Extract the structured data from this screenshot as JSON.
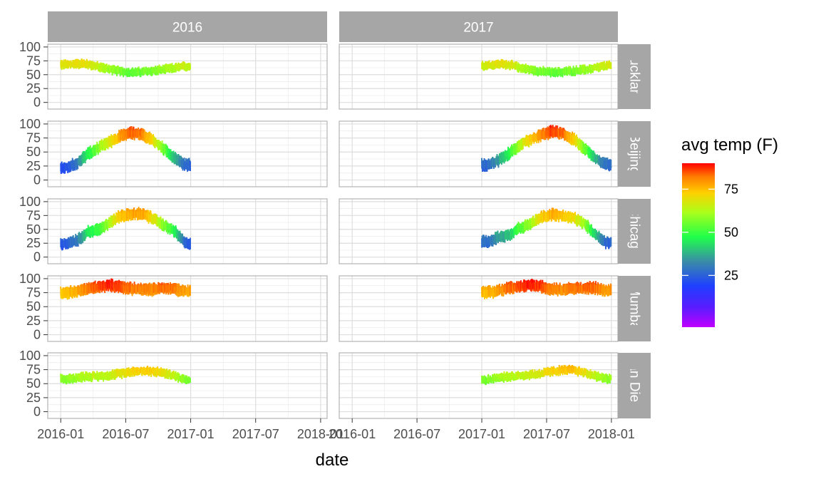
{
  "chart_data": {
    "type": "line",
    "x_label": "date",
    "columns": [
      "2016",
      "2017"
    ],
    "rows": [
      "Auckland",
      "Beijing",
      "Chicago",
      "Mumbai",
      "San Diego"
    ],
    "x_ticks": [
      "2016-01",
      "2016-07",
      "2017-01",
      "2017-07",
      "2018-01"
    ],
    "y_ticks": [
      "0",
      "25",
      "50",
      "75",
      "100"
    ],
    "y_range": [
      -12,
      105
    ],
    "color_scale": {
      "title": "avg temp (F)",
      "ticks": [
        "25",
        "50",
        "75"
      ],
      "palette": "rainbow",
      "range": [
        -5,
        90
      ]
    },
    "grid": true,
    "legend_position": "right",
    "series": [
      {
        "name": "Auckland",
        "monthly_avg_2016": [
          68,
          70,
          69,
          64,
          60,
          56,
          54,
          55,
          57,
          59,
          62,
          65
        ],
        "monthly_avg_2017": [
          67,
          69,
          68,
          63,
          59,
          56,
          54,
          55,
          57,
          59,
          62,
          66
        ],
        "daily_spread": 11
      },
      {
        "name": "Beijing",
        "monthly_avg_2016": [
          22,
          30,
          46,
          58,
          68,
          78,
          84,
          82,
          71,
          56,
          39,
          27
        ],
        "monthly_avg_2017": [
          27,
          34,
          47,
          62,
          72,
          80,
          86,
          83,
          73,
          56,
          39,
          28
        ],
        "daily_spread": 15
      },
      {
        "name": "Chicago",
        "monthly_avg_2016": [
          24,
          30,
          45,
          50,
          62,
          74,
          77,
          78,
          70,
          58,
          47,
          25
        ],
        "monthly_avg_2017": [
          28,
          35,
          40,
          53,
          59,
          72,
          77,
          74,
          70,
          60,
          42,
          26
        ],
        "daily_spread": 15
      },
      {
        "name": "Mumbai",
        "monthly_avg_2016": [
          75,
          77,
          82,
          85,
          88,
          86,
          82,
          81,
          81,
          83,
          82,
          78
        ],
        "monthly_avg_2017": [
          76,
          78,
          83,
          86,
          88,
          86,
          82,
          81,
          82,
          84,
          83,
          78
        ],
        "daily_spread": 15
      },
      {
        "name": "San Diego",
        "monthly_avg_2016": [
          58,
          61,
          63,
          63,
          65,
          68,
          72,
          73,
          72,
          69,
          64,
          58
        ],
        "monthly_avg_2017": [
          57,
          60,
          63,
          64,
          66,
          68,
          72,
          74,
          74,
          70,
          64,
          59
        ],
        "daily_spread": 11
      }
    ]
  }
}
